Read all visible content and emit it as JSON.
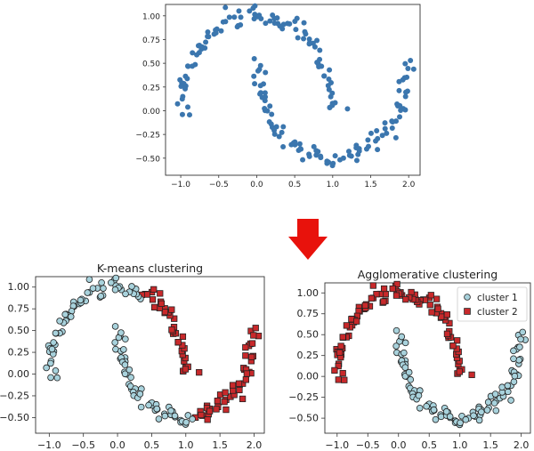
{
  "chart_data": [
    {
      "type": "scatter",
      "title": "",
      "xlim": [
        -1.2,
        2.15
      ],
      "ylim": [
        -0.68,
        1.12
      ],
      "x_ticks": [
        "-1.0",
        "-0.5",
        "0.0",
        "0.5",
        "1.0",
        "1.5",
        "2.0"
      ],
      "y_ticks": [
        "1.00",
        "0.75",
        "0.50",
        "0.25",
        "0.00",
        "-0.25",
        "-0.50"
      ],
      "grid": false,
      "colors": {
        "points": "#3b76ae"
      }
    },
    {
      "type": "scatter",
      "title": "K-means clustering",
      "xlim": [
        -1.2,
        2.15
      ],
      "ylim": [
        -0.68,
        1.12
      ],
      "x_ticks": [
        "-1.0",
        "-0.5",
        "0.0",
        "0.5",
        "1.0",
        "1.5",
        "2.0"
      ],
      "y_ticks": [
        "1.00",
        "0.75",
        "0.50",
        "0.25",
        "0.00",
        "-0.25",
        "-0.50"
      ],
      "grid": false,
      "series": [
        {
          "marker": "circle",
          "color": "#a8d2dc"
        },
        {
          "marker": "square",
          "color": "#c8292b"
        }
      ]
    },
    {
      "type": "scatter",
      "title": "Agglomerative clustering",
      "xlim": [
        -1.2,
        2.15
      ],
      "ylim": [
        -0.68,
        1.12
      ],
      "x_ticks": [
        "-1.0",
        "-0.5",
        "0.0",
        "0.5",
        "1.0",
        "1.5",
        "2.0"
      ],
      "y_ticks": [
        "1.00",
        "0.75",
        "0.50",
        "0.25",
        "0.00",
        "-0.25",
        "-0.50"
      ],
      "grid": false,
      "legend": "top-right",
      "series": [
        {
          "name": "cluster 1",
          "marker": "circle",
          "color": "#a8d2dc"
        },
        {
          "name": "cluster 2",
          "marker": "square",
          "color": "#c8292b"
        }
      ]
    }
  ],
  "arrow": {
    "color": "#e8120c",
    "icon": "arrow-down-icon"
  }
}
